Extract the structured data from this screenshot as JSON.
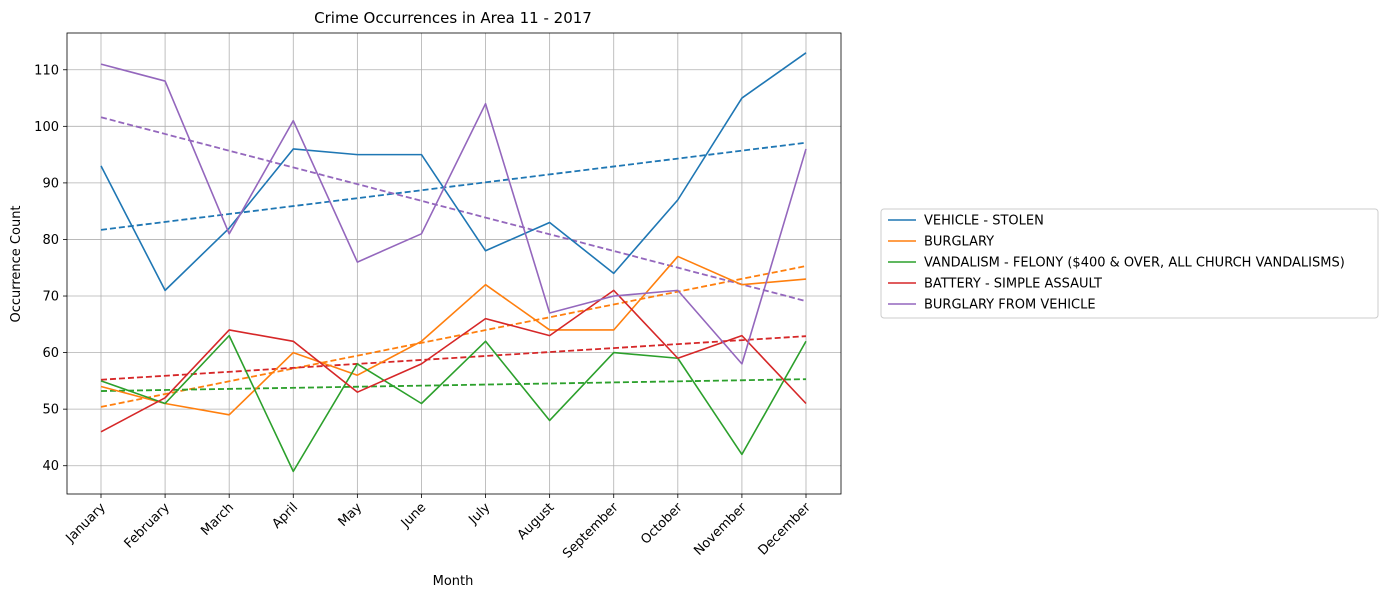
{
  "chart_data": {
    "type": "line",
    "title": "Crime Occurrences in Area 11 - 2017",
    "xlabel": "Month",
    "ylabel": "Occurrence Count",
    "categories": [
      "January",
      "February",
      "March",
      "April",
      "May",
      "June",
      "July",
      "August",
      "September",
      "October",
      "November",
      "December"
    ],
    "ylim": [
      35,
      116.5
    ],
    "yticks": [
      40,
      50,
      60,
      70,
      80,
      90,
      100,
      110
    ],
    "grid": true,
    "legend_position": "center-right, outside plot",
    "trendlines": "dashed linear fit per series",
    "series": [
      {
        "name": "VEHICLE - STOLEN",
        "color": "#1f77b4",
        "values": [
          93,
          71,
          82,
          96,
          95,
          95,
          78,
          83,
          74,
          87,
          105,
          113
        ],
        "trend": [
          81.7,
          97.1
        ]
      },
      {
        "name": "BURGLARY",
        "color": "#ff7f0e",
        "values": [
          54,
          51,
          49,
          60,
          56,
          62,
          72,
          64,
          64,
          77,
          72,
          73
        ],
        "trend": [
          50.4,
          75.3
        ]
      },
      {
        "name": "VANDALISM - FELONY ($400 & OVER, ALL CHURCH VANDALISMS)",
        "color": "#2ca02c",
        "values": [
          55,
          51,
          63,
          39,
          58,
          51,
          62,
          48,
          60,
          59,
          42,
          62
        ],
        "trend": [
          53.2,
          55.3
        ]
      },
      {
        "name": "BATTERY - SIMPLE ASSAULT",
        "color": "#d62728",
        "values": [
          46,
          52,
          64,
          62,
          53,
          58,
          66,
          63,
          71,
          59,
          63,
          51
        ],
        "trend": [
          55.2,
          62.9
        ]
      },
      {
        "name": "BURGLARY FROM VEHICLE",
        "color": "#9467bd",
        "values": [
          111,
          108,
          81,
          101,
          76,
          81,
          104,
          67,
          70,
          71,
          58,
          96
        ],
        "trend": [
          101.6,
          69.1
        ]
      }
    ]
  }
}
